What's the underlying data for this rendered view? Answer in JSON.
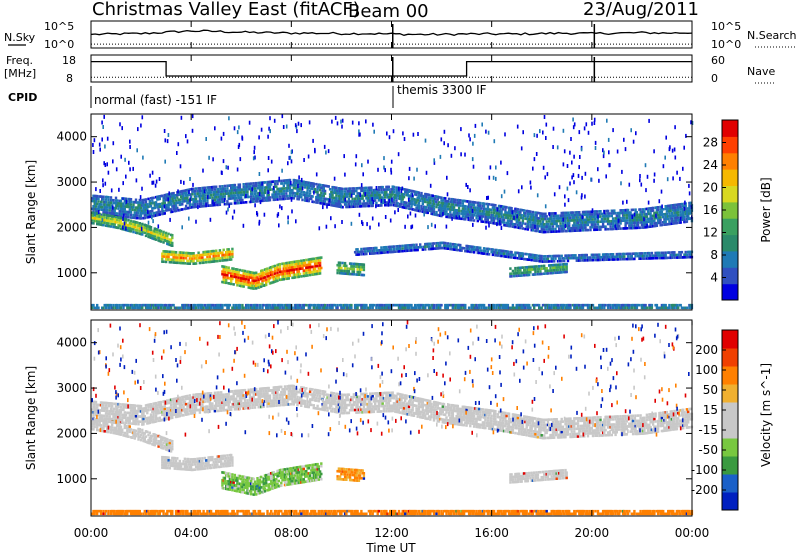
{
  "chart_data": {
    "type": "heatmap",
    "title": "Christmas Valley East (fitACF)",
    "beam": "Beam 00",
    "date": "23/Aug/2011",
    "xlabel": "Time UT",
    "ylabel": "Slant Range [km]",
    "x_range_hours": [
      0,
      24
    ],
    "x_ticks": [
      "00:00",
      "04:00",
      "08:00",
      "12:00",
      "16:00",
      "20:00",
      "00:00"
    ],
    "y_range_km": [
      180,
      4500
    ],
    "y_ticks": [
      1000,
      2000,
      3000,
      4000
    ],
    "noise_panel": {
      "left_label": "N.Sky",
      "right_label": "N.Search",
      "tick_high": "10^5",
      "tick_low": "10^0",
      "n_sky": [
        [
          0,
          2.4
        ],
        [
          1,
          2.5
        ],
        [
          2,
          2.6
        ],
        [
          3,
          2.9
        ],
        [
          4,
          3.2
        ],
        [
          5,
          3.1
        ],
        [
          6,
          2.9
        ],
        [
          7,
          2.8
        ],
        [
          8,
          2.7
        ],
        [
          9,
          2.7
        ],
        [
          10,
          2.6
        ],
        [
          11,
          2.6
        ],
        [
          12,
          2.5
        ],
        [
          13,
          2.4
        ],
        [
          14,
          2.4
        ],
        [
          15,
          2.5
        ],
        [
          16,
          2.5
        ],
        [
          17,
          2.5
        ],
        [
          18,
          2.6
        ],
        [
          19,
          2.7
        ],
        [
          20,
          2.6
        ],
        [
          21,
          2.7
        ],
        [
          22,
          2.8
        ],
        [
          23,
          2.7
        ],
        [
          24,
          2.8
        ]
      ],
      "n_search": [
        [
          0,
          0.2
        ],
        [
          24,
          0.2
        ]
      ],
      "dropouts_hours": [
        12.05,
        20.1
      ]
    },
    "freq_panel": {
      "left_label": "Freq.",
      "left_unit": "[MHz]",
      "right_label": "Nave",
      "freq_tick_high": "18",
      "freq_tick_low": "8",
      "nave_tick_high": "60",
      "nave_tick_low": "0",
      "freq_mhz": [
        [
          0,
          16.5
        ],
        [
          3.0,
          16.5
        ],
        [
          3.0,
          10.5
        ],
        [
          15.0,
          10.5
        ],
        [
          15.0,
          16.5
        ],
        [
          24,
          16.5
        ]
      ],
      "nave": [
        [
          0,
          12
        ],
        [
          24,
          12
        ]
      ]
    },
    "cpid": {
      "label": "CPID",
      "modes": [
        {
          "start_hour": 0,
          "text": "normal (fast) -151 IF"
        },
        {
          "start_hour": 12.05,
          "text": "themis 3300 IF"
        }
      ]
    },
    "power_colorbar": {
      "label": "Power [dB]",
      "ticks": [
        "4",
        "8",
        "12",
        "16",
        "20",
        "24",
        "28"
      ],
      "colors": [
        "#0000e0",
        "#3050c0",
        "#1f7ab5",
        "#2a8a6a",
        "#3aa060",
        "#7cc23a",
        "#d8d820",
        "#f5b800",
        "#ff8000",
        "#ff4000",
        "#e00000"
      ]
    },
    "velocity_colorbar": {
      "label": "Velocity [m s^-1]",
      "ticks": [
        "200",
        "100",
        "50",
        "15",
        "-15",
        "-50",
        "-100",
        "-200"
      ],
      "colors": [
        "#0020c0",
        "#1a60c8",
        "#3a9a40",
        "#78c840",
        "#c8c8c8",
        "#c8c8c8",
        "#f0b030",
        "#ff8000",
        "#f04000",
        "#e00000"
      ]
    },
    "power_features": [
      {
        "name": "far-band",
        "t": [
          0,
          24
        ],
        "ranges_km": [
          [
            0,
            2550
          ],
          [
            2,
            2450
          ],
          [
            4,
            2700
          ],
          [
            6,
            2800
          ],
          [
            8,
            2900
          ],
          [
            10,
            2700
          ],
          [
            12,
            2750
          ],
          [
            14,
            2500
          ],
          [
            16,
            2350
          ],
          [
            18,
            2150
          ],
          [
            20,
            2200
          ],
          [
            22,
            2250
          ],
          [
            24,
            2400
          ]
        ],
        "width_km": 450,
        "db": 9
      },
      {
        "name": "morning-band",
        "t": [
          0,
          3.2
        ],
        "ranges_km": [
          [
            0,
            2250
          ],
          [
            1,
            2150
          ],
          [
            2,
            2000
          ],
          [
            3.2,
            1750
          ]
        ],
        "width_km": 250,
        "db": 19
      },
      {
        "name": "early-descent",
        "t": [
          2.8,
          5.6
        ],
        "ranges_km": [
          [
            2.8,
            1400
          ],
          [
            4,
            1350
          ],
          [
            5.6,
            1450
          ]
        ],
        "width_km": 250,
        "db": 24
      },
      {
        "name": "main-blob",
        "t": [
          5.2,
          9.2
        ],
        "ranges_km": [
          [
            5.2,
            1000
          ],
          [
            6.5,
            850
          ],
          [
            7.5,
            1050
          ],
          [
            9.2,
            1200
          ]
        ],
        "width_km": 350,
        "db": 28
      },
      {
        "name": "mid-blob",
        "t": [
          9.8,
          10.9
        ],
        "ranges_km": [
          [
            9.8,
            1150
          ],
          [
            10.9,
            1100
          ]
        ],
        "width_km": 250,
        "db": 16
      },
      {
        "name": "mid-band",
        "t": [
          10.5,
          24
        ],
        "ranges_km": [
          [
            10.5,
            1500
          ],
          [
            14,
            1650
          ],
          [
            18,
            1350
          ],
          [
            24,
            1450
          ]
        ],
        "width_km": 150,
        "db": 8
      },
      {
        "name": "late-blob",
        "t": [
          16.7,
          19.0
        ],
        "ranges_km": [
          [
            16.7,
            1050
          ],
          [
            19.0,
            1150
          ]
        ],
        "width_km": 200,
        "db": 14
      },
      {
        "name": "ground-edge",
        "t": [
          0,
          24
        ],
        "ranges_km": [
          [
            0,
            280
          ],
          [
            24,
            280
          ]
        ],
        "width_km": 160,
        "db": 9
      }
    ],
    "velocity_features": [
      {
        "name": "far-band",
        "t": [
          0,
          24
        ],
        "ranges_km": [
          [
            0,
            2550
          ],
          [
            2,
            2450
          ],
          [
            4,
            2700
          ],
          [
            6,
            2800
          ],
          [
            8,
            2900
          ],
          [
            10,
            2700
          ],
          [
            12,
            2750
          ],
          [
            14,
            2500
          ],
          [
            16,
            2350
          ],
          [
            18,
            2150
          ],
          [
            20,
            2200
          ],
          [
            22,
            2250
          ],
          [
            24,
            2400
          ]
        ],
        "width_km": 450,
        "v": 0
      },
      {
        "name": "morning-band",
        "t": [
          0,
          3.2
        ],
        "ranges_km": [
          [
            0,
            2250
          ],
          [
            1,
            2150
          ],
          [
            2,
            2000
          ],
          [
            3.2,
            1750
          ]
        ],
        "width_km": 250,
        "v": 0
      },
      {
        "name": "early-descent",
        "t": [
          2.8,
          5.6
        ],
        "ranges_km": [
          [
            2.8,
            1400
          ],
          [
            4,
            1350
          ],
          [
            5.6,
            1450
          ]
        ],
        "width_km": 250,
        "v": 0
      },
      {
        "name": "main-blob",
        "t": [
          5.2,
          9.2
        ],
        "ranges_km": [
          [
            5.2,
            1000
          ],
          [
            6.5,
            850
          ],
          [
            7.5,
            1050
          ],
          [
            9.2,
            1200
          ]
        ],
        "width_km": 350,
        "v": 30
      },
      {
        "name": "mid-blob",
        "t": [
          9.8,
          10.9
        ],
        "ranges_km": [
          [
            9.8,
            1150
          ],
          [
            10.9,
            1100
          ]
        ],
        "width_km": 250,
        "v": -40
      },
      {
        "name": "late-blob",
        "t": [
          16.7,
          19.0
        ],
        "ranges_km": [
          [
            16.7,
            1050
          ],
          [
            19.0,
            1150
          ]
        ],
        "width_km": 200,
        "v": 0
      },
      {
        "name": "ground-edge",
        "t": [
          0,
          24
        ],
        "ranges_km": [
          [
            0,
            280
          ],
          [
            24,
            280
          ]
        ],
        "width_km": 160,
        "v": -60
      }
    ]
  }
}
